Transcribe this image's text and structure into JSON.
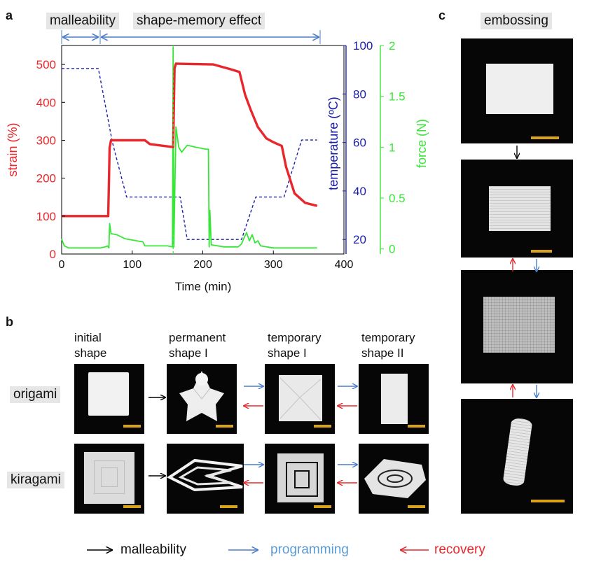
{
  "panels": {
    "a": "a",
    "b": "b",
    "c": "c"
  },
  "chart_data": {
    "type": "line",
    "phase_labels": [
      "malleability",
      "shape-memory effect"
    ],
    "xlabel": "Time (min)",
    "xlim": [
      0,
      400
    ],
    "x_ticks": [
      "0",
      "100",
      "200",
      "300",
      "400"
    ],
    "axes": {
      "strain": {
        "label": "strain (%)",
        "lim": [
          0,
          550
        ],
        "ticks": [
          "0",
          "100",
          "200",
          "300",
          "400",
          "500"
        ],
        "color": "#e8262b"
      },
      "temperature": {
        "label": "temperature (ºC)",
        "lim": [
          14,
          100
        ],
        "ticks": [
          "20",
          "40",
          "60",
          "80",
          "100"
        ],
        "color": "#1b1fa8"
      },
      "force": {
        "label": "force (N)",
        "lim": [
          -0.05,
          2
        ],
        "ticks": [
          "0",
          "0.5",
          "1",
          "1.5",
          "2"
        ],
        "color": "#37e637"
      }
    },
    "series": [
      {
        "axis": "strain",
        "x": [
          0,
          66,
          68,
          70,
          75,
          118,
          125,
          158,
          160,
          162,
          215,
          240,
          252,
          260,
          268,
          278,
          290,
          300,
          312,
          318,
          330,
          345,
          362
        ],
        "values": [
          100,
          100,
          280,
          300,
          300,
          300,
          290,
          282,
          490,
          502,
          500,
          487,
          480,
          420,
          380,
          335,
          305,
          295,
          285,
          230,
          160,
          135,
          127
        ]
      },
      {
        "axis": "temperature",
        "x": [
          0,
          52,
          72,
          92,
          150,
          160,
          168,
          178,
          240,
          255,
          275,
          295,
          315,
          340,
          362
        ],
        "values": [
          90.5,
          90.5,
          60,
          37.5,
          37.5,
          37.5,
          37.5,
          20,
          20,
          20,
          37.5,
          37.5,
          37.5,
          61,
          61
        ]
      },
      {
        "axis": "force",
        "x": [
          0,
          2,
          4,
          10,
          50,
          55,
          62,
          65,
          67,
          68,
          70,
          78,
          90,
          115,
          118,
          150,
          157,
          158,
          159,
          162,
          166,
          170,
          178,
          190,
          205,
          208,
          209,
          210,
          212,
          230,
          250,
          255,
          258,
          262,
          266,
          270,
          274,
          278,
          282,
          300,
          362
        ],
        "values": [
          0.1,
          0.06,
          0.03,
          0.01,
          0.01,
          0.01,
          0.02,
          0.03,
          0.01,
          0.25,
          0.15,
          0.14,
          0.1,
          0.07,
          0.03,
          0.03,
          0.02,
          1.98,
          0.02,
          1.2,
          1.0,
          0.95,
          1.02,
          1.0,
          0.98,
          0.98,
          0.02,
          0.38,
          0.04,
          0.02,
          0.02,
          0.05,
          0.1,
          0.16,
          0.08,
          0.14,
          0.06,
          0.08,
          0.03,
          0.01,
          0.01
        ]
      }
    ]
  },
  "panel_b": {
    "column_headers": [
      "initial\nshape",
      "permanent\nshape I",
      "temporary\nshape I",
      "temporary\nshape II"
    ],
    "row_labels": [
      "origami",
      "kiragami"
    ]
  },
  "panel_c": {
    "title": "embossing"
  },
  "legend": [
    {
      "label": "malleability",
      "color": "#000000",
      "text_color": "#111111"
    },
    {
      "label": "programming",
      "color": "#4a7cc9",
      "text_color": "#5b9bd5"
    },
    {
      "label": "recovery",
      "color": "#e8262b",
      "text_color": "#e8262b"
    }
  ]
}
